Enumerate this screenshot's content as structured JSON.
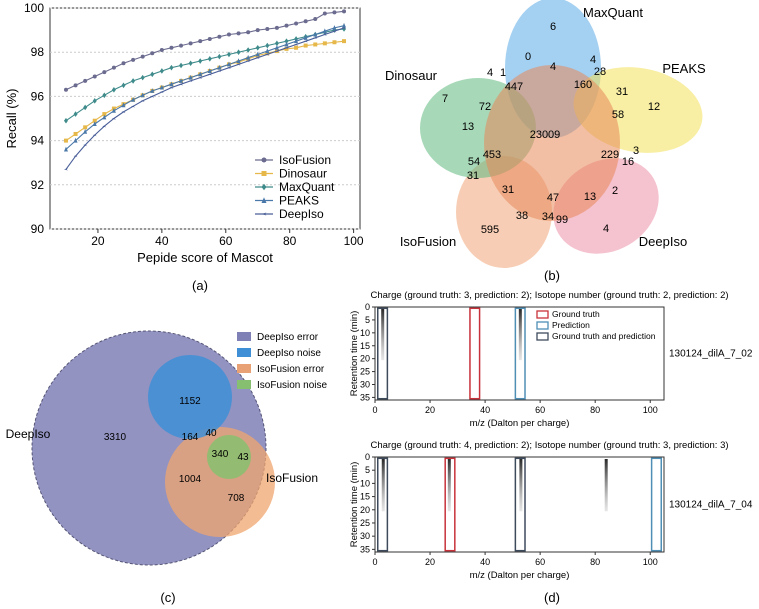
{
  "panel_labels": {
    "a": "(a)",
    "b": "(b)",
    "c": "(c)",
    "d": "(d)"
  },
  "chart_data": [
    {
      "id": "a",
      "type": "line",
      "xlabel": "Pepide score of Mascot",
      "ylabel": "Recall (%)",
      "xlim": [
        5,
        102
      ],
      "ylim": [
        90,
        100
      ],
      "xticks": [
        "20",
        "40",
        "60",
        "80",
        "100"
      ],
      "yticks": [
        "90",
        "92",
        "94",
        "96",
        "98",
        "100"
      ],
      "x": [
        10,
        13,
        16,
        19,
        22,
        25,
        28,
        31,
        34,
        37,
        40,
        43,
        46,
        49,
        52,
        55,
        58,
        61,
        64,
        67,
        70,
        73,
        76,
        79,
        82,
        85,
        88,
        91,
        94,
        97
      ],
      "legend_position": "bottom-right",
      "series": [
        {
          "name": "IsoFusion",
          "marker": "circle",
          "color": "#6b6b8f",
          "values": [
            96.3,
            96.5,
            96.7,
            96.9,
            97.1,
            97.3,
            97.5,
            97.65,
            97.8,
            97.95,
            98.1,
            98.2,
            98.3,
            98.4,
            98.5,
            98.6,
            98.7,
            98.8,
            98.85,
            98.9,
            99.0,
            99.05,
            99.1,
            99.2,
            99.3,
            99.4,
            99.5,
            99.75,
            99.8,
            99.85
          ]
        },
        {
          "name": "Dinosaur",
          "marker": "square",
          "color": "#e6b84a",
          "values": [
            94.0,
            94.3,
            94.6,
            94.9,
            95.2,
            95.45,
            95.65,
            95.85,
            96.05,
            96.25,
            96.4,
            96.55,
            96.7,
            96.85,
            97.0,
            97.15,
            97.3,
            97.45,
            97.55,
            97.7,
            97.85,
            97.95,
            98.05,
            98.15,
            98.2,
            98.3,
            98.35,
            98.4,
            98.45,
            98.5
          ]
        },
        {
          "name": "MaxQuant",
          "marker": "diamond",
          "color": "#3f8b8b",
          "values": [
            94.9,
            95.2,
            95.5,
            95.8,
            96.05,
            96.3,
            96.5,
            96.7,
            96.85,
            97.0,
            97.15,
            97.3,
            97.4,
            97.5,
            97.6,
            97.7,
            97.8,
            97.9,
            98.0,
            98.1,
            98.2,
            98.3,
            98.4,
            98.5,
            98.6,
            98.7,
            98.8,
            98.9,
            99.0,
            99.05
          ]
        },
        {
          "name": "PEAKS",
          "marker": "triangle",
          "color": "#4a78a8",
          "values": [
            93.6,
            94.0,
            94.4,
            94.75,
            95.05,
            95.35,
            95.6,
            95.85,
            96.05,
            96.25,
            96.4,
            96.55,
            96.7,
            96.85,
            97.0,
            97.15,
            97.3,
            97.45,
            97.6,
            97.75,
            97.9,
            98.05,
            98.2,
            98.35,
            98.5,
            98.65,
            98.8,
            98.95,
            99.1,
            99.2
          ]
        },
        {
          "name": "DeepIso",
          "marker": "star",
          "color": "#4a5f99",
          "values": [
            92.7,
            93.3,
            93.8,
            94.25,
            94.65,
            95.0,
            95.3,
            95.55,
            95.8,
            96.0,
            96.2,
            96.4,
            96.55,
            96.7,
            96.85,
            97.0,
            97.15,
            97.3,
            97.45,
            97.6,
            97.75,
            97.9,
            98.05,
            98.2,
            98.35,
            98.5,
            98.65,
            98.8,
            98.95,
            99.1
          ]
        }
      ]
    },
    {
      "id": "b",
      "type": "venn",
      "sets": [
        {
          "name": "MaxQuant",
          "color": "#5aa9e6"
        },
        {
          "name": "PEAKS",
          "color": "#f2e05a"
        },
        {
          "name": "DeepIso",
          "color": "#ec8fa8"
        },
        {
          "name": "IsoFusion",
          "color": "#f2ad84"
        },
        {
          "name": "Dinosaur",
          "color": "#5eb87e"
        }
      ],
      "region_values": [
        "6",
        "0",
        "4",
        "4",
        "28",
        "12",
        "160",
        "31",
        "58",
        "3",
        "229",
        "16",
        "2",
        "4",
        "13",
        "47",
        "99",
        "34",
        "38",
        "595",
        "31",
        "31",
        "54",
        "453",
        "23009",
        "13",
        "72",
        "7",
        "4",
        "1",
        "447"
      ]
    },
    {
      "id": "c",
      "type": "venn",
      "sets": [
        {
          "name": "DeepIso",
          "label": "DeepIso",
          "color": "#7a7ab8"
        },
        {
          "name": "IsoFusion",
          "label": "IsoFusion",
          "color": "#f0a56e"
        }
      ],
      "legend": [
        {
          "name": "DeepIso error",
          "color": "#7f80b6"
        },
        {
          "name": "DeepIso noise",
          "color": "#3e8fd6"
        },
        {
          "name": "IsoFusion error",
          "color": "#e7a174"
        },
        {
          "name": "IsoFusion noise",
          "color": "#86bf6f"
        }
      ],
      "region_values": [
        "3310",
        "1152",
        "164",
        "40",
        "340",
        "43",
        "1004",
        "708"
      ]
    },
    {
      "id": "d",
      "type": "heatmap",
      "xlabel": "m/z (Dalton per charge)",
      "ylabel": "Retention time (min)",
      "xlim": [
        0,
        105
      ],
      "ylim": [
        0,
        36
      ],
      "xticks": [
        "0",
        "20",
        "40",
        "60",
        "80",
        "100"
      ],
      "yticks": [
        "0",
        "5",
        "10",
        "15",
        "20",
        "25",
        "30",
        "35"
      ],
      "legend": [
        {
          "name": "Ground truth",
          "color": "#c8323a"
        },
        {
          "name": "Prediction",
          "color": "#4f8fb5"
        },
        {
          "name": "Ground truth and prediction",
          "color": "#3d4a5c"
        }
      ],
      "plots": [
        {
          "title": "Charge (ground truth: 3, prediction: 2); Isotope number (ground truth: 2, prediction: 2)",
          "sample": "130124_dilA_7_02",
          "boxes": [
            {
              "kind": "both",
              "x0": 1,
              "x1": 4.5
            },
            {
              "kind": "truth",
              "x0": 34.5,
              "x1": 38
            },
            {
              "kind": "pred",
              "x0": 51,
              "x1": 54.5
            }
          ],
          "signal_mz": [
            2.8,
            52.8
          ]
        },
        {
          "title": "Charge (ground truth: 4, prediction: 2); Isotope number (ground truth: 3, prediction: 3)",
          "sample": "130124_dilA_7_04",
          "boxes": [
            {
              "kind": "both",
              "x0": 1,
              "x1": 4.5
            },
            {
              "kind": "truth",
              "x0": 25.5,
              "x1": 29
            },
            {
              "kind": "both",
              "x0": 51,
              "x1": 54.5
            },
            {
              "kind": "pred",
              "x0": 100.5,
              "x1": 104
            }
          ],
          "signal_mz": [
            3,
            27,
            53,
            84
          ]
        }
      ]
    }
  ]
}
